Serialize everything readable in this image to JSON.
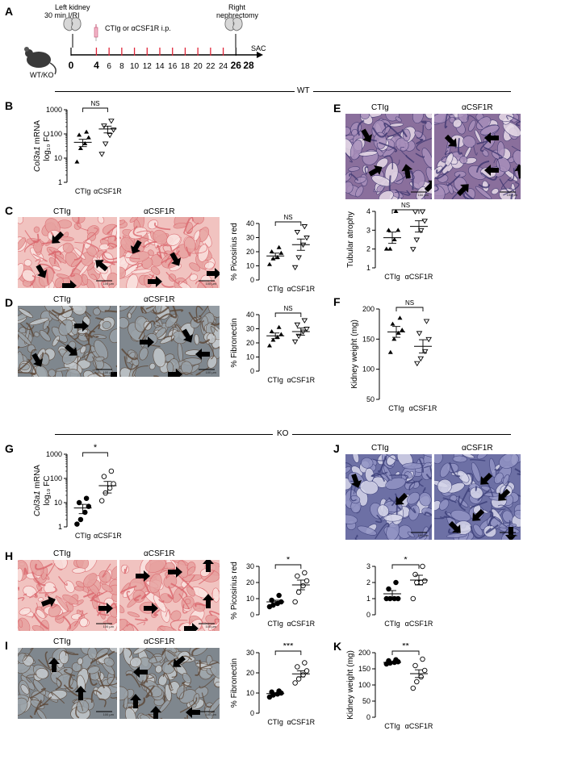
{
  "panelA": {
    "label": "A",
    "left_kidney_1": "Left kidney",
    "left_kidney_2": "30 min I/RI",
    "treatment": "CTIg or αCSF1R i.p.",
    "right_1": "Right",
    "right_2": "nephrectomy",
    "sac": "SAC",
    "mouse": "WT/KO",
    "ticks": [
      "0",
      "4",
      "6",
      "8",
      "10",
      "12",
      "14",
      "16",
      "18",
      "20",
      "22",
      "24",
      "26",
      "28"
    ]
  },
  "sections": {
    "wt": "WT",
    "ko": "KO"
  },
  "groups": [
    "CTIg",
    "αCSF1R"
  ],
  "ns": "NS",
  "scale_bar": "100 μm",
  "panels": {
    "B": {
      "label": "B",
      "ylabel_gene": "Col3a1",
      "ylabel_rest": " mRNA",
      "ylabel2": "log₁₀ FC",
      "sig": "NS"
    },
    "C": {
      "label": "C",
      "ylabel": "% Picosirius red",
      "sig": "NS"
    },
    "D": {
      "label": "D",
      "ylabel": "% Fibronectin",
      "sig": "NS"
    },
    "E": {
      "label": "E",
      "ylabel": "Tubular atrophy",
      "sig": "NS"
    },
    "F": {
      "label": "F",
      "ylabel": "Kidney weight (mg)",
      "sig": "NS"
    },
    "G": {
      "label": "G",
      "ylabel_gene": "Col3a1",
      "ylabel_rest": " mRNA",
      "ylabel2": "log₁₀ FC",
      "sig": "*"
    },
    "H": {
      "label": "H",
      "ylabel": "% Picosirius red",
      "sig": "*"
    },
    "I": {
      "label": "I",
      "ylabel": "% Fibronectin",
      "sig": "***"
    },
    "J": {
      "label": "J"
    },
    "K": {
      "label": "K",
      "ylabel": "Kidney weight (mg)",
      "sig": "**"
    }
  },
  "chart_data": [
    {
      "id": "B",
      "type": "scatter",
      "log": true,
      "ylim": [
        1,
        1000
      ],
      "yticks": [
        1,
        10,
        100,
        1000
      ],
      "categories": [
        "CTIg",
        "αCSF1R"
      ],
      "sig": "NS",
      "filled": true,
      "series": [
        {
          "name": "CTIg",
          "values": [
            7,
            25,
            40,
            70,
            90,
            120
          ],
          "mean": 45,
          "sem": 15
        },
        {
          "name": "αCSF1R",
          "values": [
            15,
            40,
            90,
            150,
            220,
            350
          ],
          "mean": 160,
          "sem": 50
        }
      ]
    },
    {
      "id": "C",
      "type": "scatter",
      "ylim": [
        0,
        40
      ],
      "yticks": [
        0,
        10,
        20,
        30,
        40
      ],
      "categories": [
        "CTIg",
        "αCSF1R"
      ],
      "sig": "NS",
      "filled": true,
      "series": [
        {
          "name": "CTIg",
          "values": [
            11,
            15,
            16,
            19,
            20,
            23
          ],
          "mean": 17,
          "sem": 2
        },
        {
          "name": "αCSF1R",
          "values": [
            9,
            16,
            25,
            30,
            34,
            38
          ],
          "mean": 25,
          "sem": 4
        }
      ]
    },
    {
      "id": "D",
      "type": "scatter",
      "ylim": [
        0,
        40
      ],
      "yticks": [
        0,
        10,
        20,
        30,
        40
      ],
      "categories": [
        "CTIg",
        "αCSF1R"
      ],
      "sig": "NS",
      "filled": true,
      "series": [
        {
          "name": "CTIg",
          "values": [
            18,
            22,
            24,
            26,
            28,
            31
          ],
          "mean": 25,
          "sem": 2
        },
        {
          "name": "αCSF1R",
          "values": [
            21,
            25,
            28,
            30,
            33,
            36
          ],
          "mean": 28,
          "sem": 2.5
        }
      ]
    },
    {
      "id": "E",
      "type": "scatter",
      "ylim": [
        1,
        4
      ],
      "yticks": [
        1,
        2,
        3,
        4
      ],
      "categories": [
        "CTIg",
        "αCSF1R"
      ],
      "sig": "NS",
      "filled": true,
      "series": [
        {
          "name": "CTIg",
          "values": [
            2,
            2,
            2.5,
            3,
            3,
            4
          ],
          "mean": 2.6,
          "sem": 0.3
        },
        {
          "name": "αCSF1R",
          "values": [
            2,
            2.5,
            3,
            3.5,
            4,
            4
          ],
          "mean": 3.2,
          "sem": 0.3
        }
      ]
    },
    {
      "id": "F",
      "type": "scatter",
      "ylim": [
        50,
        200
      ],
      "yticks": [
        50,
        100,
        150,
        200
      ],
      "categories": [
        "CTIg",
        "αCSF1R"
      ],
      "sig": "NS",
      "filled": true,
      "series": [
        {
          "name": "CTIg",
          "values": [
            128,
            150,
            160,
            165,
            175,
            185
          ],
          "mean": 162,
          "sem": 9
        },
        {
          "name": "αCSF1R",
          "values": [
            110,
            118,
            130,
            150,
            160,
            180
          ],
          "mean": 138,
          "sem": 11
        }
      ]
    },
    {
      "id": "G",
      "type": "scatter",
      "log": true,
      "ylim": [
        1,
        1000
      ],
      "yticks": [
        1,
        10,
        100,
        1000
      ],
      "categories": [
        "CTIg",
        "αCSF1R"
      ],
      "sig": "*",
      "filled": false,
      "series": [
        {
          "name": "CTIg",
          "values": [
            1.3,
            2,
            4,
            7,
            10,
            15
          ],
          "mean": 6,
          "sem": 2.5
        },
        {
          "name": "αCSF1R",
          "values": [
            12,
            25,
            40,
            60,
            120,
            200
          ],
          "mean": 50,
          "sem": 25
        }
      ]
    },
    {
      "id": "H",
      "type": "scatter",
      "ylim": [
        0,
        30
      ],
      "yticks": [
        0,
        10,
        20,
        30
      ],
      "categories": [
        "CTIg",
        "αCSF1R"
      ],
      "sig": "*",
      "filled": false,
      "series": [
        {
          "name": "CTIg",
          "values": [
            5,
            6,
            7,
            8,
            9,
            12
          ],
          "mean": 8,
          "sem": 1
        },
        {
          "name": "αCSF1R",
          "values": [
            8,
            14,
            18,
            21,
            24,
            26
          ],
          "mean": 18.5,
          "sem": 3
        }
      ]
    },
    {
      "id": "I",
      "type": "scatter",
      "ylim": [
        0,
        30
      ],
      "yticks": [
        0,
        10,
        20,
        30
      ],
      "categories": [
        "CTIg",
        "αCSF1R"
      ],
      "sig": "***",
      "filled": false,
      "series": [
        {
          "name": "CTIg",
          "values": [
            8,
            9,
            9.5,
            10,
            10.5,
            11
          ],
          "mean": 9.7,
          "sem": 0.5
        },
        {
          "name": "αCSF1R",
          "values": [
            15,
            17,
            19,
            21,
            23,
            25
          ],
          "mean": 19.5,
          "sem": 1.5
        }
      ]
    },
    {
      "id": "J",
      "type": "scatter",
      "ylim": [
        0,
        3
      ],
      "yticks": [
        0,
        1,
        2,
        3
      ],
      "categories": [
        "CTIg",
        "αCSF1R"
      ],
      "sig": "*",
      "filled": false,
      "series": [
        {
          "name": "CTIg",
          "values": [
            1,
            1,
            1,
            1,
            1.6,
            2
          ],
          "mean": 1.3,
          "sem": 0.2
        },
        {
          "name": "αCSF1R",
          "values": [
            1,
            2,
            2,
            2.1,
            2.5,
            3
          ],
          "mean": 2.15,
          "sem": 0.3
        }
      ]
    },
    {
      "id": "K",
      "type": "scatter",
      "ylim": [
        0,
        200
      ],
      "yticks": [
        0,
        50,
        100,
        150,
        200
      ],
      "categories": [
        "CTIg",
        "αCSF1R"
      ],
      "sig": "**",
      "filled": false,
      "series": [
        {
          "name": "CTIg",
          "values": [
            165,
            168,
            170,
            172,
            175,
            178
          ],
          "mean": 170,
          "sem": 3
        },
        {
          "name": "αCSF1R",
          "values": [
            90,
            110,
            125,
            145,
            160,
            180
          ],
          "mean": 135,
          "sem": 12
        }
      ]
    }
  ]
}
